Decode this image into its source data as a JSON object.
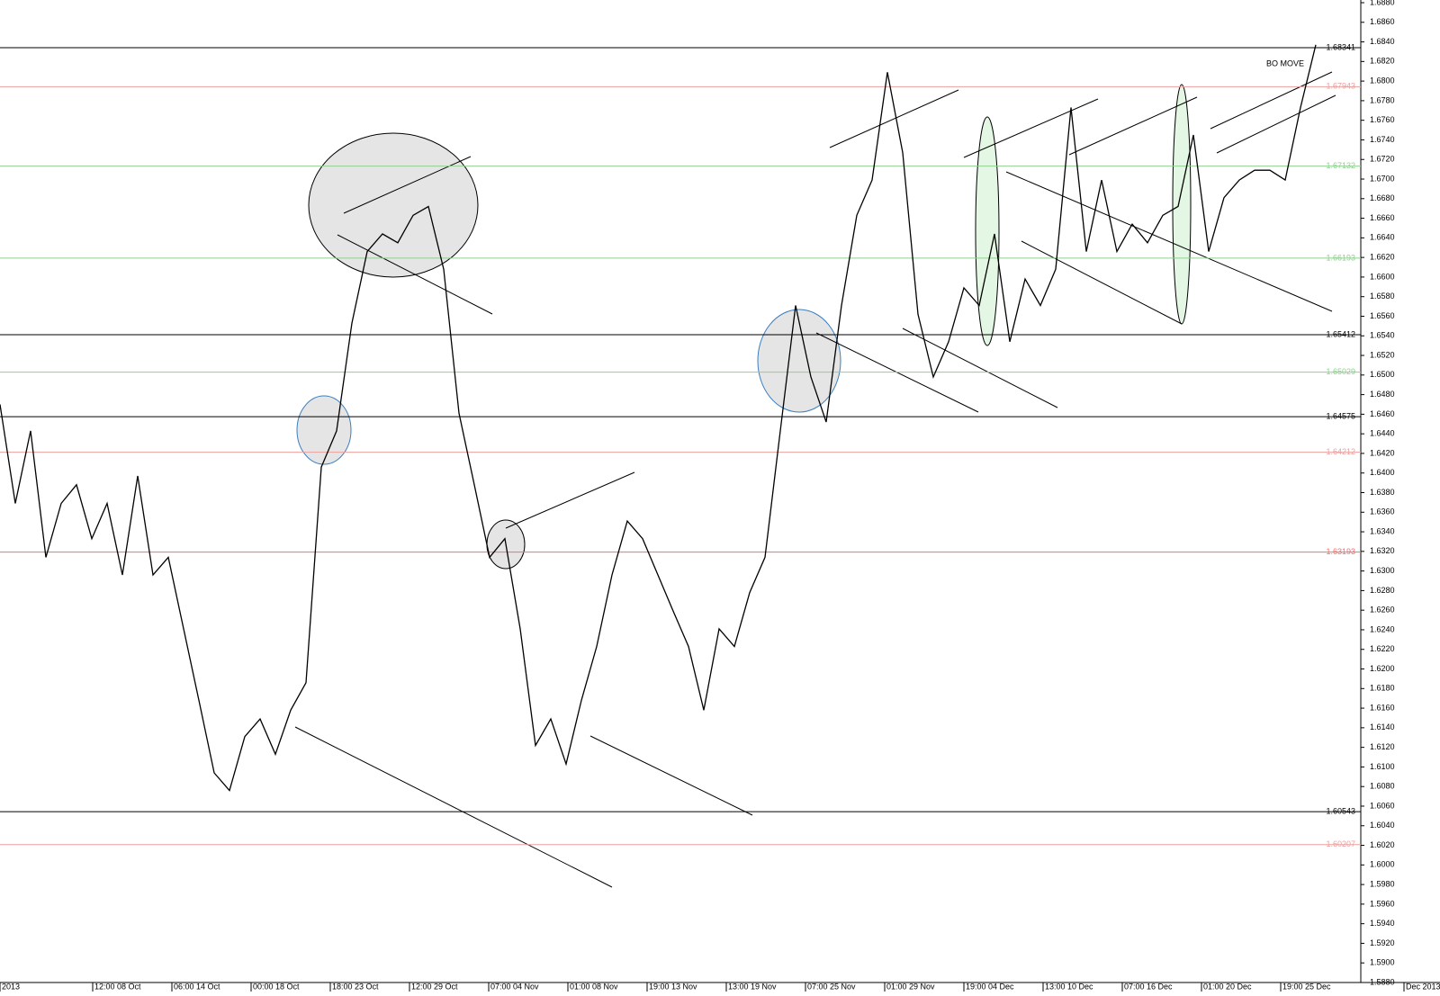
{
  "chart_data": {
    "type": "line",
    "color": "#000000",
    "x_labels": [
      "2013",
      "12:00 08 Oct",
      "06:00 14 Oct",
      "00:00 18 Oct",
      "18:00 23 Oct",
      "12:00 29 Oct",
      "07:00 04 Nov",
      "01:00 08 Nov",
      "19:00 13 Nov",
      "13:00 19 Nov",
      "07:00 25 Nov",
      "01:00 29 Nov",
      "19:00 04 Dec",
      "13:00 10 Dec",
      "07:00 16 Dec",
      "01:00 20 Dec",
      "19:00 25 Dec",
      "Dec 2013"
    ],
    "values": [
      1.647,
      1.6369,
      1.6443,
      1.6314,
      1.6369,
      1.6388,
      1.6333,
      1.6369,
      1.6296,
      1.6397,
      1.6296,
      1.6314,
      1.6241,
      1.6168,
      1.6094,
      1.6076,
      1.6131,
      1.6149,
      1.6113,
      1.6158,
      1.6186,
      1.6406,
      1.6443,
      1.6553,
      1.6626,
      1.6644,
      1.6635,
      1.6663,
      1.6672,
      1.6608,
      1.6461,
      1.6388,
      1.6314,
      1.6333,
      1.6241,
      1.6122,
      1.6149,
      1.6103,
      1.6168,
      1.6223,
      1.6296,
      1.6351,
      1.6333,
      1.6296,
      1.6259,
      1.6223,
      1.6158,
      1.6241,
      1.6223,
      1.6278,
      1.6314,
      1.6443,
      1.6571,
      1.6498,
      1.6452,
      1.6571,
      1.6663,
      1.6699,
      1.6809,
      1.6727,
      1.6562,
      1.6498,
      1.6534,
      1.6589,
      1.6571,
      1.6644,
      1.6534,
      1.6598,
      1.6571,
      1.6608,
      1.6773,
      1.6626,
      1.6699,
      1.6626,
      1.6654,
      1.6635,
      1.6663,
      1.6672,
      1.6745,
      1.6626,
      1.6681,
      1.6699,
      1.6709,
      1.6709,
      1.6699,
      1.6773,
      1.6837
    ],
    "ylim": [
      1.588,
      1.688
    ],
    "yticks": [
      {
        "value": 1.588,
        "label": "1.5880"
      },
      {
        "value": 1.59,
        "label": "1.5900"
      },
      {
        "value": 1.592,
        "label": "1.5920"
      },
      {
        "value": 1.594,
        "label": "1.5940"
      },
      {
        "value": 1.596,
        "label": "1.5960"
      },
      {
        "value": 1.598,
        "label": "1.5980"
      },
      {
        "value": 1.6,
        "label": "1.6000"
      },
      {
        "value": 1.602,
        "label": "1.6020"
      },
      {
        "value": 1.604,
        "label": "1.6040"
      },
      {
        "value": 1.606,
        "label": "1.6060"
      },
      {
        "value": 1.608,
        "label": "1.6080"
      },
      {
        "value": 1.61,
        "label": "1.6100"
      },
      {
        "value": 1.612,
        "label": "1.6120"
      },
      {
        "value": 1.614,
        "label": "1.6140"
      },
      {
        "value": 1.616,
        "label": "1.6160"
      },
      {
        "value": 1.618,
        "label": "1.6180"
      },
      {
        "value": 1.62,
        "label": "1.6200"
      },
      {
        "value": 1.622,
        "label": "1.6220"
      },
      {
        "value": 1.624,
        "label": "1.6240"
      },
      {
        "value": 1.626,
        "label": "1.6260"
      },
      {
        "value": 1.628,
        "label": "1.6280"
      },
      {
        "value": 1.63,
        "label": "1.6300"
      },
      {
        "value": 1.632,
        "label": "1.6320"
      },
      {
        "value": 1.634,
        "label": "1.6340"
      },
      {
        "value": 1.636,
        "label": "1.6360"
      },
      {
        "value": 1.638,
        "label": "1.6380"
      },
      {
        "value": 1.64,
        "label": "1.6400"
      },
      {
        "value": 1.642,
        "label": "1.6420"
      },
      {
        "value": 1.644,
        "label": "1.6440"
      },
      {
        "value": 1.646,
        "label": "1.6460"
      },
      {
        "value": 1.648,
        "label": "1.6480"
      },
      {
        "value": 1.65,
        "label": "1.6500"
      },
      {
        "value": 1.652,
        "label": "1.6520"
      },
      {
        "value": 1.654,
        "label": "1.6540"
      },
      {
        "value": 1.656,
        "label": "1.6560"
      },
      {
        "value": 1.658,
        "label": "1.6580"
      },
      {
        "value": 1.66,
        "label": "1.6600"
      },
      {
        "value": 1.662,
        "label": "1.6620"
      },
      {
        "value": 1.664,
        "label": "1.6640"
      },
      {
        "value": 1.666,
        "label": "1.6660"
      },
      {
        "value": 1.668,
        "label": "1.6680"
      },
      {
        "value": 1.67,
        "label": "1.6700"
      },
      {
        "value": 1.672,
        "label": "1.6720"
      },
      {
        "value": 1.674,
        "label": "1.6740"
      },
      {
        "value": 1.676,
        "label": "1.6760"
      },
      {
        "value": 1.678,
        "label": "1.6780"
      },
      {
        "value": 1.68,
        "label": "1.6800"
      },
      {
        "value": 1.682,
        "label": "1.6820"
      },
      {
        "value": 1.684,
        "label": "1.6840"
      },
      {
        "value": 1.686,
        "label": "1.6860"
      },
      {
        "value": 1.688,
        "label": "1.6880"
      }
    ],
    "levels": [
      {
        "value": 1.68341,
        "color": "#000000"
      },
      {
        "value": 1.67943,
        "color": "#e9a0a0"
      },
      {
        "value": 1.67132,
        "color": "#8fcf8f"
      },
      {
        "value": 1.66193,
        "color": "#8fcf8f"
      },
      {
        "value": 1.65412,
        "color": "#000000"
      },
      {
        "value": 1.65029,
        "color": "#8fcf8f"
      },
      {
        "value": 1.64575,
        "color": "#000000"
      },
      {
        "value": 1.64212,
        "color": "#e9a0a0"
      },
      {
        "value": 1.63193,
        "color": "#f07070"
      },
      {
        "value": 1.60543,
        "color": "#000000"
      },
      {
        "value": 1.60207,
        "color": "#e9a0a0"
      }
    ],
    "annotation": "BO MOVE"
  }
}
